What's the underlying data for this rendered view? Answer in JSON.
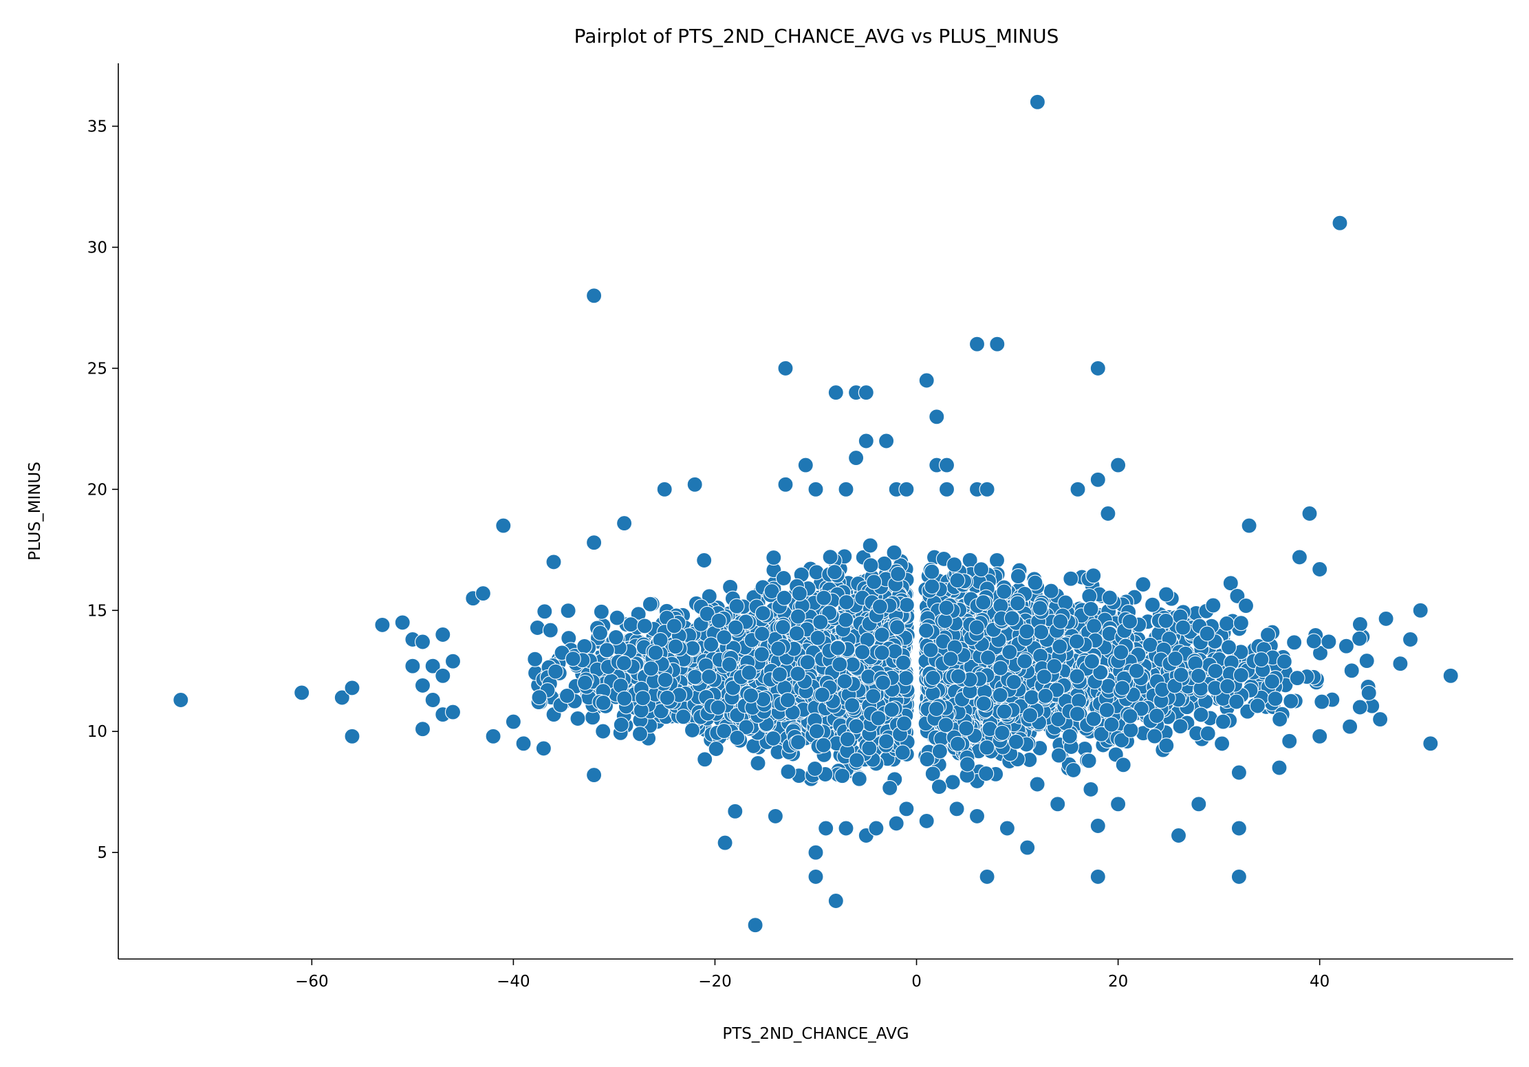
{
  "chart_data": {
    "type": "scatter",
    "title": "Pairplot of PTS_2ND_CHANCE_AVG vs PLUS_MINUS",
    "xlabel": "PTS_2ND_CHANCE_AVG",
    "ylabel": "PLUS_MINUS",
    "xlim": [
      -79.2,
      59.2
    ],
    "ylim": [
      0.6,
      37.6
    ],
    "xticks": [
      -60,
      -40,
      -20,
      0,
      20,
      40
    ],
    "xtick_labels": [
      "−60",
      "−40",
      "−20",
      "0",
      "20",
      "40"
    ],
    "yticks": [
      5,
      10,
      15,
      20,
      25,
      30,
      35
    ],
    "ytick_labels": [
      "5",
      "10",
      "15",
      "20",
      "25",
      "30",
      "35"
    ],
    "grid": false,
    "color": "#1f77b4",
    "outliers": [
      [
        12,
        36
      ],
      [
        42,
        31
      ],
      [
        -32,
        28
      ],
      [
        -13,
        25
      ],
      [
        18,
        25
      ],
      [
        6,
        26
      ],
      [
        8,
        26
      ],
      [
        -8,
        24
      ],
      [
        -6,
        24
      ],
      [
        -5,
        24
      ],
      [
        1,
        24.5
      ],
      [
        2,
        23
      ],
      [
        -5,
        22
      ],
      [
        -3,
        22
      ],
      [
        -11,
        21
      ],
      [
        -6,
        21.3
      ],
      [
        2,
        21
      ],
      [
        3,
        21
      ],
      [
        20,
        21
      ],
      [
        -25,
        20
      ],
      [
        -22,
        20.2
      ],
      [
        -13,
        20.2
      ],
      [
        -10,
        20
      ],
      [
        -7,
        20
      ],
      [
        -2,
        20
      ],
      [
        -1,
        20
      ],
      [
        3,
        20
      ],
      [
        6,
        20
      ],
      [
        7,
        20
      ],
      [
        16,
        20
      ],
      [
        18,
        20.4
      ],
      [
        -41,
        18.5
      ],
      [
        -29,
        18.6
      ],
      [
        19,
        19
      ],
      [
        39,
        19
      ],
      [
        33,
        18.5
      ],
      [
        -73,
        11.3
      ],
      [
        -61,
        11.6
      ],
      [
        -57,
        11.4
      ],
      [
        -56,
        11.8
      ],
      [
        -56,
        9.8
      ],
      [
        -53,
        14.4
      ],
      [
        -51,
        14.5
      ],
      [
        -50,
        13.8
      ],
      [
        -49,
        13.7
      ],
      [
        -50,
        12.7
      ],
      [
        -49,
        11.9
      ],
      [
        -49,
        10.1
      ],
      [
        -48,
        12.7
      ],
      [
        -48,
        11.3
      ],
      [
        -47,
        14
      ],
      [
        -47,
        12.3
      ],
      [
        -47,
        10.7
      ],
      [
        -46,
        12.9
      ],
      [
        -46,
        10.8
      ],
      [
        -44,
        15.5
      ],
      [
        -43,
        15.7
      ],
      [
        -42,
        9.8
      ],
      [
        -40,
        10.4
      ],
      [
        -39,
        9.5
      ],
      [
        -37,
        9.3
      ],
      [
        -32,
        8.2
      ],
      [
        -36,
        17
      ],
      [
        -32,
        17.8
      ],
      [
        50,
        15
      ],
      [
        49,
        13.8
      ],
      [
        48,
        12.8
      ],
      [
        53,
        12.3
      ],
      [
        51,
        9.5
      ],
      [
        46,
        10.5
      ],
      [
        44,
        11
      ],
      [
        43,
        10.2
      ],
      [
        40,
        9.8
      ],
      [
        37,
        9.6
      ],
      [
        36,
        8.5
      ],
      [
        32,
        8.3
      ],
      [
        38,
        17.2
      ],
      [
        40,
        16.7
      ],
      [
        -16,
        2
      ],
      [
        -8,
        3
      ],
      [
        -10,
        4
      ],
      [
        -10,
        5
      ],
      [
        -9,
        6
      ],
      [
        -7,
        6
      ],
      [
        -5,
        5.7
      ],
      [
        -4,
        6
      ],
      [
        -2,
        6.2
      ],
      [
        7,
        4
      ],
      [
        9,
        6
      ],
      [
        11,
        5.2
      ],
      [
        18,
        4
      ],
      [
        18,
        6.1
      ],
      [
        26,
        5.7
      ],
      [
        32,
        4
      ],
      [
        32,
        6
      ],
      [
        -19,
        5.4
      ],
      [
        -18,
        6.7
      ],
      [
        -14,
        6.5
      ],
      [
        -1,
        6.8
      ],
      [
        1,
        6.3
      ],
      [
        4,
        6.8
      ],
      [
        6,
        6.5
      ],
      [
        20,
        7
      ],
      [
        28,
        7
      ],
      [
        14,
        7
      ]
    ],
    "bulk": {
      "n": 5200,
      "seed": 7,
      "x_mean": 0,
      "x_sd": 14.5,
      "x_range": [
        -38,
        49
      ],
      "y_mean": 12.6,
      "y_sd": 1.85,
      "y_range": [
        7.6,
        17.8
      ],
      "center_gap": [
        -0.9,
        0.9
      ]
    }
  }
}
